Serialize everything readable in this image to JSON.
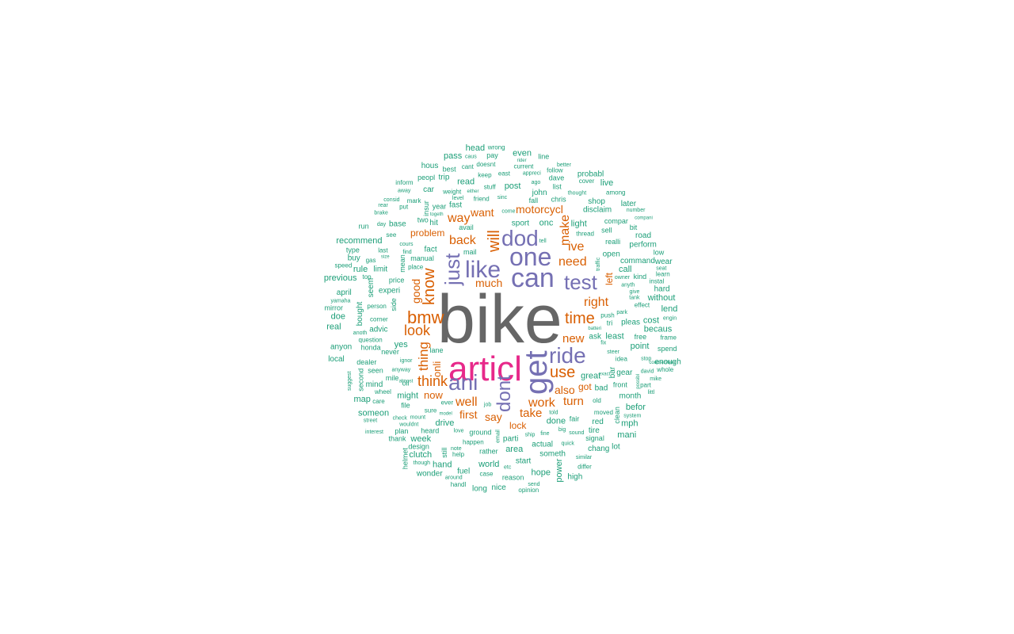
{
  "chart_data": {
    "type": "wordcloud",
    "palette": {
      "tier1": "#666666",
      "tier2": "#e7298a",
      "tier3": "#7570b3",
      "tier4": "#d95f02",
      "tier5": "#1b9e77"
    },
    "words": [
      {
        "text": "bike",
        "tier": 1
      },
      {
        "text": "articl",
        "tier": 2
      },
      {
        "text": "get",
        "tier": 3
      },
      {
        "text": "can",
        "tier": 3
      },
      {
        "text": "one",
        "tier": 3
      },
      {
        "text": "like",
        "tier": 3
      },
      {
        "text": "dod",
        "tier": 3
      },
      {
        "text": "ride",
        "tier": 3
      },
      {
        "text": "ani",
        "tier": 3
      },
      {
        "text": "test",
        "tier": 3
      },
      {
        "text": "just",
        "tier": 3
      },
      {
        "text": "dont",
        "tier": 3
      },
      {
        "text": "bmw",
        "tier": 4
      },
      {
        "text": "know",
        "tier": 4
      },
      {
        "text": "time",
        "tier": 4
      },
      {
        "text": "use",
        "tier": 4
      },
      {
        "text": "will",
        "tier": 4
      },
      {
        "text": "think",
        "tier": 4
      },
      {
        "text": "thing",
        "tier": 4
      },
      {
        "text": "look",
        "tier": 4
      },
      {
        "text": "need",
        "tier": 4
      },
      {
        "text": "make",
        "tier": 4
      },
      {
        "text": "want",
        "tier": 4
      },
      {
        "text": "back",
        "tier": 4
      },
      {
        "text": "way",
        "tier": 4
      },
      {
        "text": "work",
        "tier": 4
      },
      {
        "text": "take",
        "tier": 4
      },
      {
        "text": "well",
        "tier": 4
      },
      {
        "text": "new",
        "tier": 4
      },
      {
        "text": "right",
        "tier": 4
      },
      {
        "text": "good",
        "tier": 4
      },
      {
        "text": "motorcycl",
        "tier": 4
      },
      {
        "text": "ive",
        "tier": 4
      },
      {
        "text": "turn",
        "tier": 4
      },
      {
        "text": "first",
        "tier": 4
      },
      {
        "text": "say",
        "tier": 4
      },
      {
        "text": "also",
        "tier": 4
      },
      {
        "text": "much",
        "tier": 4
      },
      {
        "text": "onli",
        "tier": 4
      },
      {
        "text": "now",
        "tier": 4
      },
      {
        "text": "problem",
        "tier": 4
      },
      {
        "text": "got",
        "tier": 4
      },
      {
        "text": "lock",
        "tier": 4
      },
      {
        "text": "left",
        "tier": 4
      },
      {
        "text": "realli",
        "tier": 5
      },
      {
        "text": "anyon",
        "tier": 5
      },
      {
        "text": "two",
        "tier": 5
      },
      {
        "text": "see",
        "tier": 5
      },
      {
        "text": "buy",
        "tier": 5
      },
      {
        "text": "speed",
        "tier": 5
      },
      {
        "text": "front",
        "tier": 5
      },
      {
        "text": "chris",
        "tier": 5
      },
      {
        "text": "road",
        "tier": 5
      },
      {
        "text": "even",
        "tier": 5
      },
      {
        "text": "tri",
        "tier": 5
      },
      {
        "text": "mile",
        "tier": 5
      },
      {
        "text": "still",
        "tier": 5
      },
      {
        "text": "year",
        "tier": 5
      },
      {
        "text": "around",
        "tier": 5
      },
      {
        "text": "system",
        "tier": 5
      },
      {
        "text": "opinion",
        "tier": 5
      },
      {
        "text": "enough",
        "tier": 5
      },
      {
        "text": "help",
        "tier": 5
      },
      {
        "text": "question",
        "tier": 5
      },
      {
        "text": "keep",
        "tier": 5
      },
      {
        "text": "read",
        "tier": 5
      },
      {
        "text": "seem",
        "tier": 5
      },
      {
        "text": "doe",
        "tier": 5
      },
      {
        "text": "someon",
        "tier": 5
      },
      {
        "text": "tire",
        "tier": 5
      },
      {
        "text": "differ",
        "tier": 5
      },
      {
        "text": "pleas",
        "tier": 5
      },
      {
        "text": "give",
        "tier": 5
      },
      {
        "text": "day",
        "tier": 5
      },
      {
        "text": "seat",
        "tier": 5
      },
      {
        "text": "recommend",
        "tier": 5
      },
      {
        "text": "thank",
        "tier": 5
      },
      {
        "text": "chang",
        "tier": 5
      },
      {
        "text": "wheel",
        "tier": 5
      },
      {
        "text": "peopl",
        "tier": 5
      },
      {
        "text": "never",
        "tier": 5
      },
      {
        "text": "hand",
        "tier": 5
      },
      {
        "text": "best",
        "tier": 5
      },
      {
        "text": "long",
        "tier": 5
      },
      {
        "text": "thought",
        "tier": 5
      },
      {
        "text": "put",
        "tier": 5
      },
      {
        "text": "push",
        "tier": 5
      },
      {
        "text": "mike",
        "tier": 5
      },
      {
        "text": "gas",
        "tier": 5
      },
      {
        "text": "away",
        "tier": 5
      },
      {
        "text": "second",
        "tier": 5
      },
      {
        "text": "great",
        "tier": 5
      },
      {
        "text": "friend",
        "tier": 5
      },
      {
        "text": "place",
        "tier": 5
      },
      {
        "text": "doesnt",
        "tier": 5
      },
      {
        "text": "reason",
        "tier": 5
      },
      {
        "text": "anyway",
        "tier": 5
      },
      {
        "text": "cours",
        "tier": 5
      },
      {
        "text": "advic",
        "tier": 5
      },
      {
        "text": "etc",
        "tier": 5
      },
      {
        "text": "david",
        "tier": 5
      },
      {
        "text": "current",
        "tier": 5
      },
      {
        "text": "dave",
        "tier": 5
      },
      {
        "text": "bought",
        "tier": 5
      },
      {
        "text": "limit",
        "tier": 5
      },
      {
        "text": "power",
        "tier": 5
      },
      {
        "text": "frame",
        "tier": 5
      },
      {
        "text": "engin",
        "tier": 5
      },
      {
        "text": "perform",
        "tier": 5
      },
      {
        "text": "come",
        "tier": 5
      },
      {
        "text": "better",
        "tier": 5
      },
      {
        "text": "heard",
        "tier": 5
      },
      {
        "text": "idea",
        "tier": 5
      },
      {
        "text": "later",
        "tier": 5
      },
      {
        "text": "nice",
        "tier": 5
      },
      {
        "text": "weight",
        "tier": 5
      },
      {
        "text": "command",
        "tier": 5
      },
      {
        "text": "fair",
        "tier": 5
      },
      {
        "text": "rather",
        "tier": 5
      },
      {
        "text": "thread",
        "tier": 5
      },
      {
        "text": "ground",
        "tier": 5
      },
      {
        "text": "point",
        "tier": 5
      },
      {
        "text": "hard",
        "tier": 5
      },
      {
        "text": "side",
        "tier": 5
      },
      {
        "text": "start",
        "tier": 5
      },
      {
        "text": "happen",
        "tier": 5
      },
      {
        "text": "parti",
        "tier": 5
      },
      {
        "text": "disclaim",
        "tier": 5
      },
      {
        "text": "previous",
        "tier": 5
      },
      {
        "text": "becaus",
        "tier": 5
      },
      {
        "text": "might",
        "tier": 5
      },
      {
        "text": "sure",
        "tier": 5
      },
      {
        "text": "check",
        "tier": 5
      },
      {
        "text": "though",
        "tier": 5
      },
      {
        "text": "last",
        "tier": 5
      },
      {
        "text": "least",
        "tier": 5
      },
      {
        "text": "effect",
        "tier": 5
      },
      {
        "text": "drive",
        "tier": 5
      },
      {
        "text": "lend",
        "tier": 5
      },
      {
        "text": "dealer",
        "tier": 5
      },
      {
        "text": "post",
        "tier": 5
      },
      {
        "text": "littl",
        "tier": 5
      },
      {
        "text": "cant",
        "tier": 5
      },
      {
        "text": "mean",
        "tier": 5
      },
      {
        "text": "level",
        "tier": 5
      },
      {
        "text": "stuff",
        "tier": 5
      },
      {
        "text": "anyth",
        "tier": 5
      },
      {
        "text": "care",
        "tier": 5
      },
      {
        "text": "befor",
        "tier": 5
      },
      {
        "text": "light",
        "tier": 5
      },
      {
        "text": "insur",
        "tier": 5
      },
      {
        "text": "run",
        "tier": 5
      },
      {
        "text": "actual",
        "tier": 5
      },
      {
        "text": "cover",
        "tier": 5
      },
      {
        "text": "probabl",
        "tier": 5
      },
      {
        "text": "corner",
        "tier": 5
      },
      {
        "text": "email",
        "tier": 5
      },
      {
        "text": "someth",
        "tier": 5
      },
      {
        "text": "clean",
        "tier": 5
      },
      {
        "text": "mani",
        "tier": 5
      },
      {
        "text": "month",
        "tier": 5
      },
      {
        "text": "sound",
        "tier": 5
      },
      {
        "text": "owner",
        "tier": 5
      },
      {
        "text": "consid",
        "tier": 5
      },
      {
        "text": "real",
        "tier": 5
      },
      {
        "text": "map",
        "tier": 5
      },
      {
        "text": "east",
        "tier": 5
      },
      {
        "text": "person",
        "tier": 5
      },
      {
        "text": "design",
        "tier": 5
      },
      {
        "text": "manual",
        "tier": 5
      },
      {
        "text": "number",
        "tier": 5
      },
      {
        "text": "similar",
        "tier": 5
      },
      {
        "text": "ask",
        "tier": 5
      },
      {
        "text": "sport",
        "tier": 5
      },
      {
        "text": "car",
        "tier": 5
      },
      {
        "text": "low",
        "tier": 5
      },
      {
        "text": "live",
        "tier": 5
      },
      {
        "text": "area",
        "tier": 5
      },
      {
        "text": "love",
        "tier": 5
      },
      {
        "text": "april",
        "tier": 5
      },
      {
        "text": "done",
        "tier": 5
      },
      {
        "text": "world",
        "tier": 5
      },
      {
        "text": "caus",
        "tier": 5
      },
      {
        "text": "wear",
        "tier": 5
      },
      {
        "text": "avail",
        "tier": 5
      },
      {
        "text": "traffic",
        "tier": 5
      },
      {
        "text": "compar",
        "tier": 5
      },
      {
        "text": "rear",
        "tier": 5
      },
      {
        "text": "file",
        "tier": 5
      },
      {
        "text": "quick",
        "tier": 5
      },
      {
        "text": "handl",
        "tier": 5
      },
      {
        "text": "without",
        "tier": 5
      },
      {
        "text": "bit",
        "tier": 5
      },
      {
        "text": "fact",
        "tier": 5
      },
      {
        "text": "park",
        "tier": 5
      },
      {
        "text": "moved",
        "tier": 5
      },
      {
        "text": "red",
        "tier": 5
      },
      {
        "text": "ignor",
        "tier": 5
      },
      {
        "text": "steer",
        "tier": 5
      },
      {
        "text": "brake",
        "tier": 5
      },
      {
        "text": "signal",
        "tier": 5
      },
      {
        "text": "bar",
        "tier": 5
      },
      {
        "text": "line",
        "tier": 5
      },
      {
        "text": "type",
        "tier": 5
      },
      {
        "text": "price",
        "tier": 5
      },
      {
        "text": "among",
        "tier": 5
      },
      {
        "text": "john",
        "tier": 5
      },
      {
        "text": "rule",
        "tier": 5
      },
      {
        "text": "sell",
        "tier": 5
      },
      {
        "text": "fast",
        "tier": 5
      },
      {
        "text": "gear",
        "tier": 5
      },
      {
        "text": "pass",
        "tier": 5
      },
      {
        "text": "kind",
        "tier": 5
      },
      {
        "text": "plan",
        "tier": 5
      },
      {
        "text": "shop",
        "tier": 5
      },
      {
        "text": "mind",
        "tier": 5
      },
      {
        "text": "stop",
        "tier": 5
      },
      {
        "text": "job",
        "tier": 5
      },
      {
        "text": "spend",
        "tier": 5
      },
      {
        "text": "base",
        "tier": 5
      },
      {
        "text": "case",
        "tier": 5
      },
      {
        "text": "old",
        "tier": 5
      },
      {
        "text": "head",
        "tier": 5
      },
      {
        "text": "pay",
        "tier": 5
      },
      {
        "text": "cost",
        "tier": 5
      },
      {
        "text": "clutch",
        "tier": 5
      },
      {
        "text": "oil",
        "tier": 5
      },
      {
        "text": "tank",
        "tier": 5
      },
      {
        "text": "mirror",
        "tier": 5
      },
      {
        "text": "helmet",
        "tier": 5
      },
      {
        "text": "lane",
        "tier": 5
      },
      {
        "text": "open",
        "tier": 5
      },
      {
        "text": "free",
        "tier": 5
      },
      {
        "text": "fine",
        "tier": 5
      },
      {
        "text": "mail",
        "tier": 5
      },
      {
        "text": "list",
        "tier": 5
      },
      {
        "text": "send",
        "tier": 5
      },
      {
        "text": "note",
        "tier": 5
      },
      {
        "text": "week",
        "tier": 5
      },
      {
        "text": "seen",
        "tier": 5
      },
      {
        "text": "told",
        "tier": 5
      },
      {
        "text": "wrong",
        "tier": 5
      },
      {
        "text": "hope",
        "tier": 5
      },
      {
        "text": "suggest",
        "tier": 5
      },
      {
        "text": "local",
        "tier": 5
      },
      {
        "text": "instal",
        "tier": 5
      },
      {
        "text": "anoth",
        "tier": 5
      },
      {
        "text": "onc",
        "tier": 5
      },
      {
        "text": "appreci",
        "tier": 5
      },
      {
        "text": "possibl",
        "tier": 5
      },
      {
        "text": "yes",
        "tier": 5
      },
      {
        "text": "ago",
        "tier": 5
      },
      {
        "text": "sinc",
        "tier": 5
      },
      {
        "text": "ever",
        "tier": 5
      },
      {
        "text": "part",
        "tier": 5
      },
      {
        "text": "model",
        "tier": 5
      },
      {
        "text": "trip",
        "tier": 5
      },
      {
        "text": "mph",
        "tier": 5
      },
      {
        "text": "hit",
        "tier": 5
      },
      {
        "text": "fall",
        "tier": 5
      },
      {
        "text": "fix",
        "tier": 5
      },
      {
        "text": "top",
        "tier": 5
      },
      {
        "text": "call",
        "tier": 5
      },
      {
        "text": "tell",
        "tier": 5
      },
      {
        "text": "find",
        "tier": 5
      },
      {
        "text": "interest",
        "tier": 5
      },
      {
        "text": "wonder",
        "tier": 5
      },
      {
        "text": "experi",
        "tier": 5
      },
      {
        "text": "inform",
        "tier": 5
      },
      {
        "text": "honda",
        "tier": 5
      },
      {
        "text": "mount",
        "tier": 5
      },
      {
        "text": "lot",
        "tier": 5
      },
      {
        "text": "bad",
        "tier": 5
      },
      {
        "text": "high",
        "tier": 5
      },
      {
        "text": "big",
        "tier": 5
      },
      {
        "text": "almost",
        "tier": 5
      },
      {
        "text": "fuel",
        "tier": 5
      },
      {
        "text": "rider",
        "tier": 5
      },
      {
        "text": "yamaha",
        "tier": 5
      },
      {
        "text": "street",
        "tier": 5
      },
      {
        "text": "countersteer",
        "tier": 5
      },
      {
        "text": "hous",
        "tier": 5
      },
      {
        "text": "mark",
        "tier": 5
      },
      {
        "text": "size",
        "tier": 5
      },
      {
        "text": "learn",
        "tier": 5
      },
      {
        "text": "whole",
        "tier": 5
      },
      {
        "text": "wouldnt",
        "tier": 5
      },
      {
        "text": "exact",
        "tier": 5
      },
      {
        "text": "either",
        "tier": 5
      },
      {
        "text": "togeth",
        "tier": 5
      },
      {
        "text": "follow",
        "tier": 5
      },
      {
        "text": "ship",
        "tier": 5
      },
      {
        "text": "batteri",
        "tier": 5
      },
      {
        "text": "compani",
        "tier": 5
      }
    ]
  }
}
